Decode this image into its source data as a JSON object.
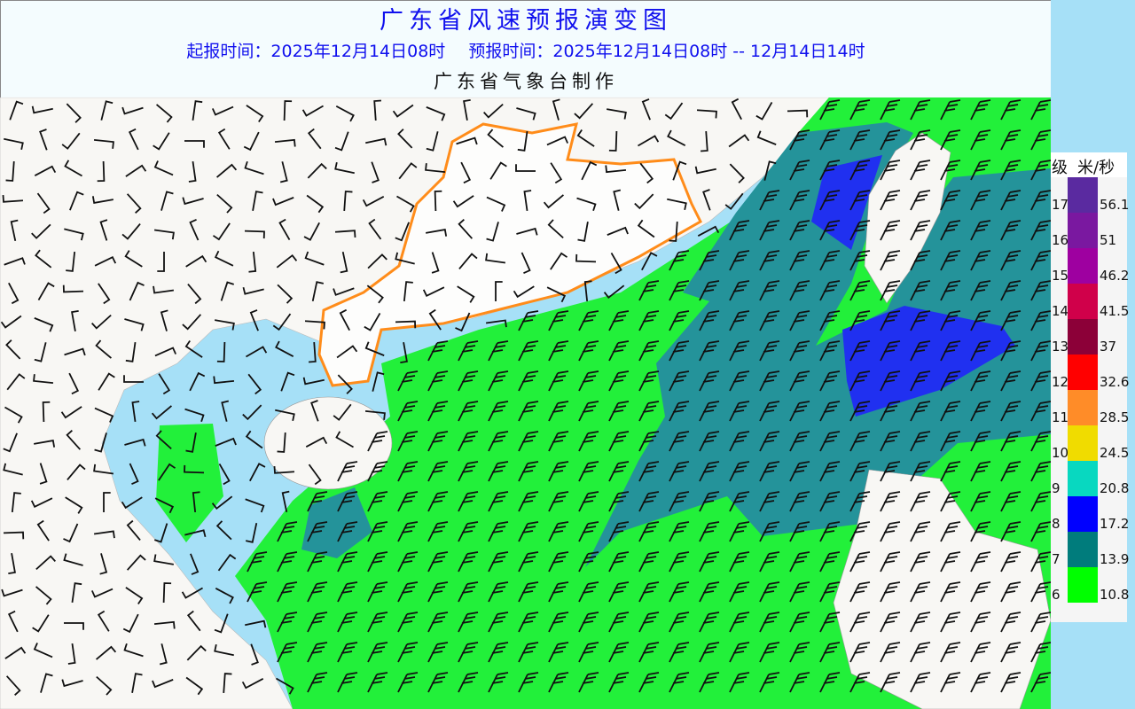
{
  "header": {
    "title": "广东省风速预报演变图",
    "issue_time": "起报时间：2025年12月14日08时",
    "forecast_time": "预报时间：2025年12月14日08时 -- 12月14日14时",
    "producer": "广东省气象台制作"
  },
  "legend": {
    "level_label": "级",
    "unit_label": "米/秒",
    "items": [
      {
        "level": "17",
        "speed": "56.1",
        "color": "#5a2aa0"
      },
      {
        "level": "16",
        "speed": "51",
        "color": "#7a18a0"
      },
      {
        "level": "15",
        "speed": "46.2",
        "color": "#9e00a0"
      },
      {
        "level": "14",
        "speed": "41.5",
        "color": "#d0004a"
      },
      {
        "level": "13",
        "speed": "37",
        "color": "#8c0038"
      },
      {
        "level": "12",
        "speed": "32.6",
        "color": "#ff0000"
      },
      {
        "level": "11",
        "speed": "28.5",
        "color": "#ff8c28"
      },
      {
        "level": "10",
        "speed": "24.5",
        "color": "#f0dc00"
      },
      {
        "level": "9",
        "speed": "20.8",
        "color": "#08d8c0"
      },
      {
        "level": "8",
        "speed": "17.2",
        "color": "#0000ff"
      },
      {
        "level": "7",
        "speed": "13.9",
        "color": "#007c7c"
      },
      {
        "level": "6",
        "speed": "10.8",
        "color": "#00ff00"
      }
    ]
  },
  "map_colors": {
    "sea": "#a6e0f7",
    "land": "#f8f7f4",
    "level6_area": "#22f03a",
    "level7_area": "#24939a",
    "level8_area": "#2030f0",
    "guangdong_outline": "#ff8c1a"
  }
}
